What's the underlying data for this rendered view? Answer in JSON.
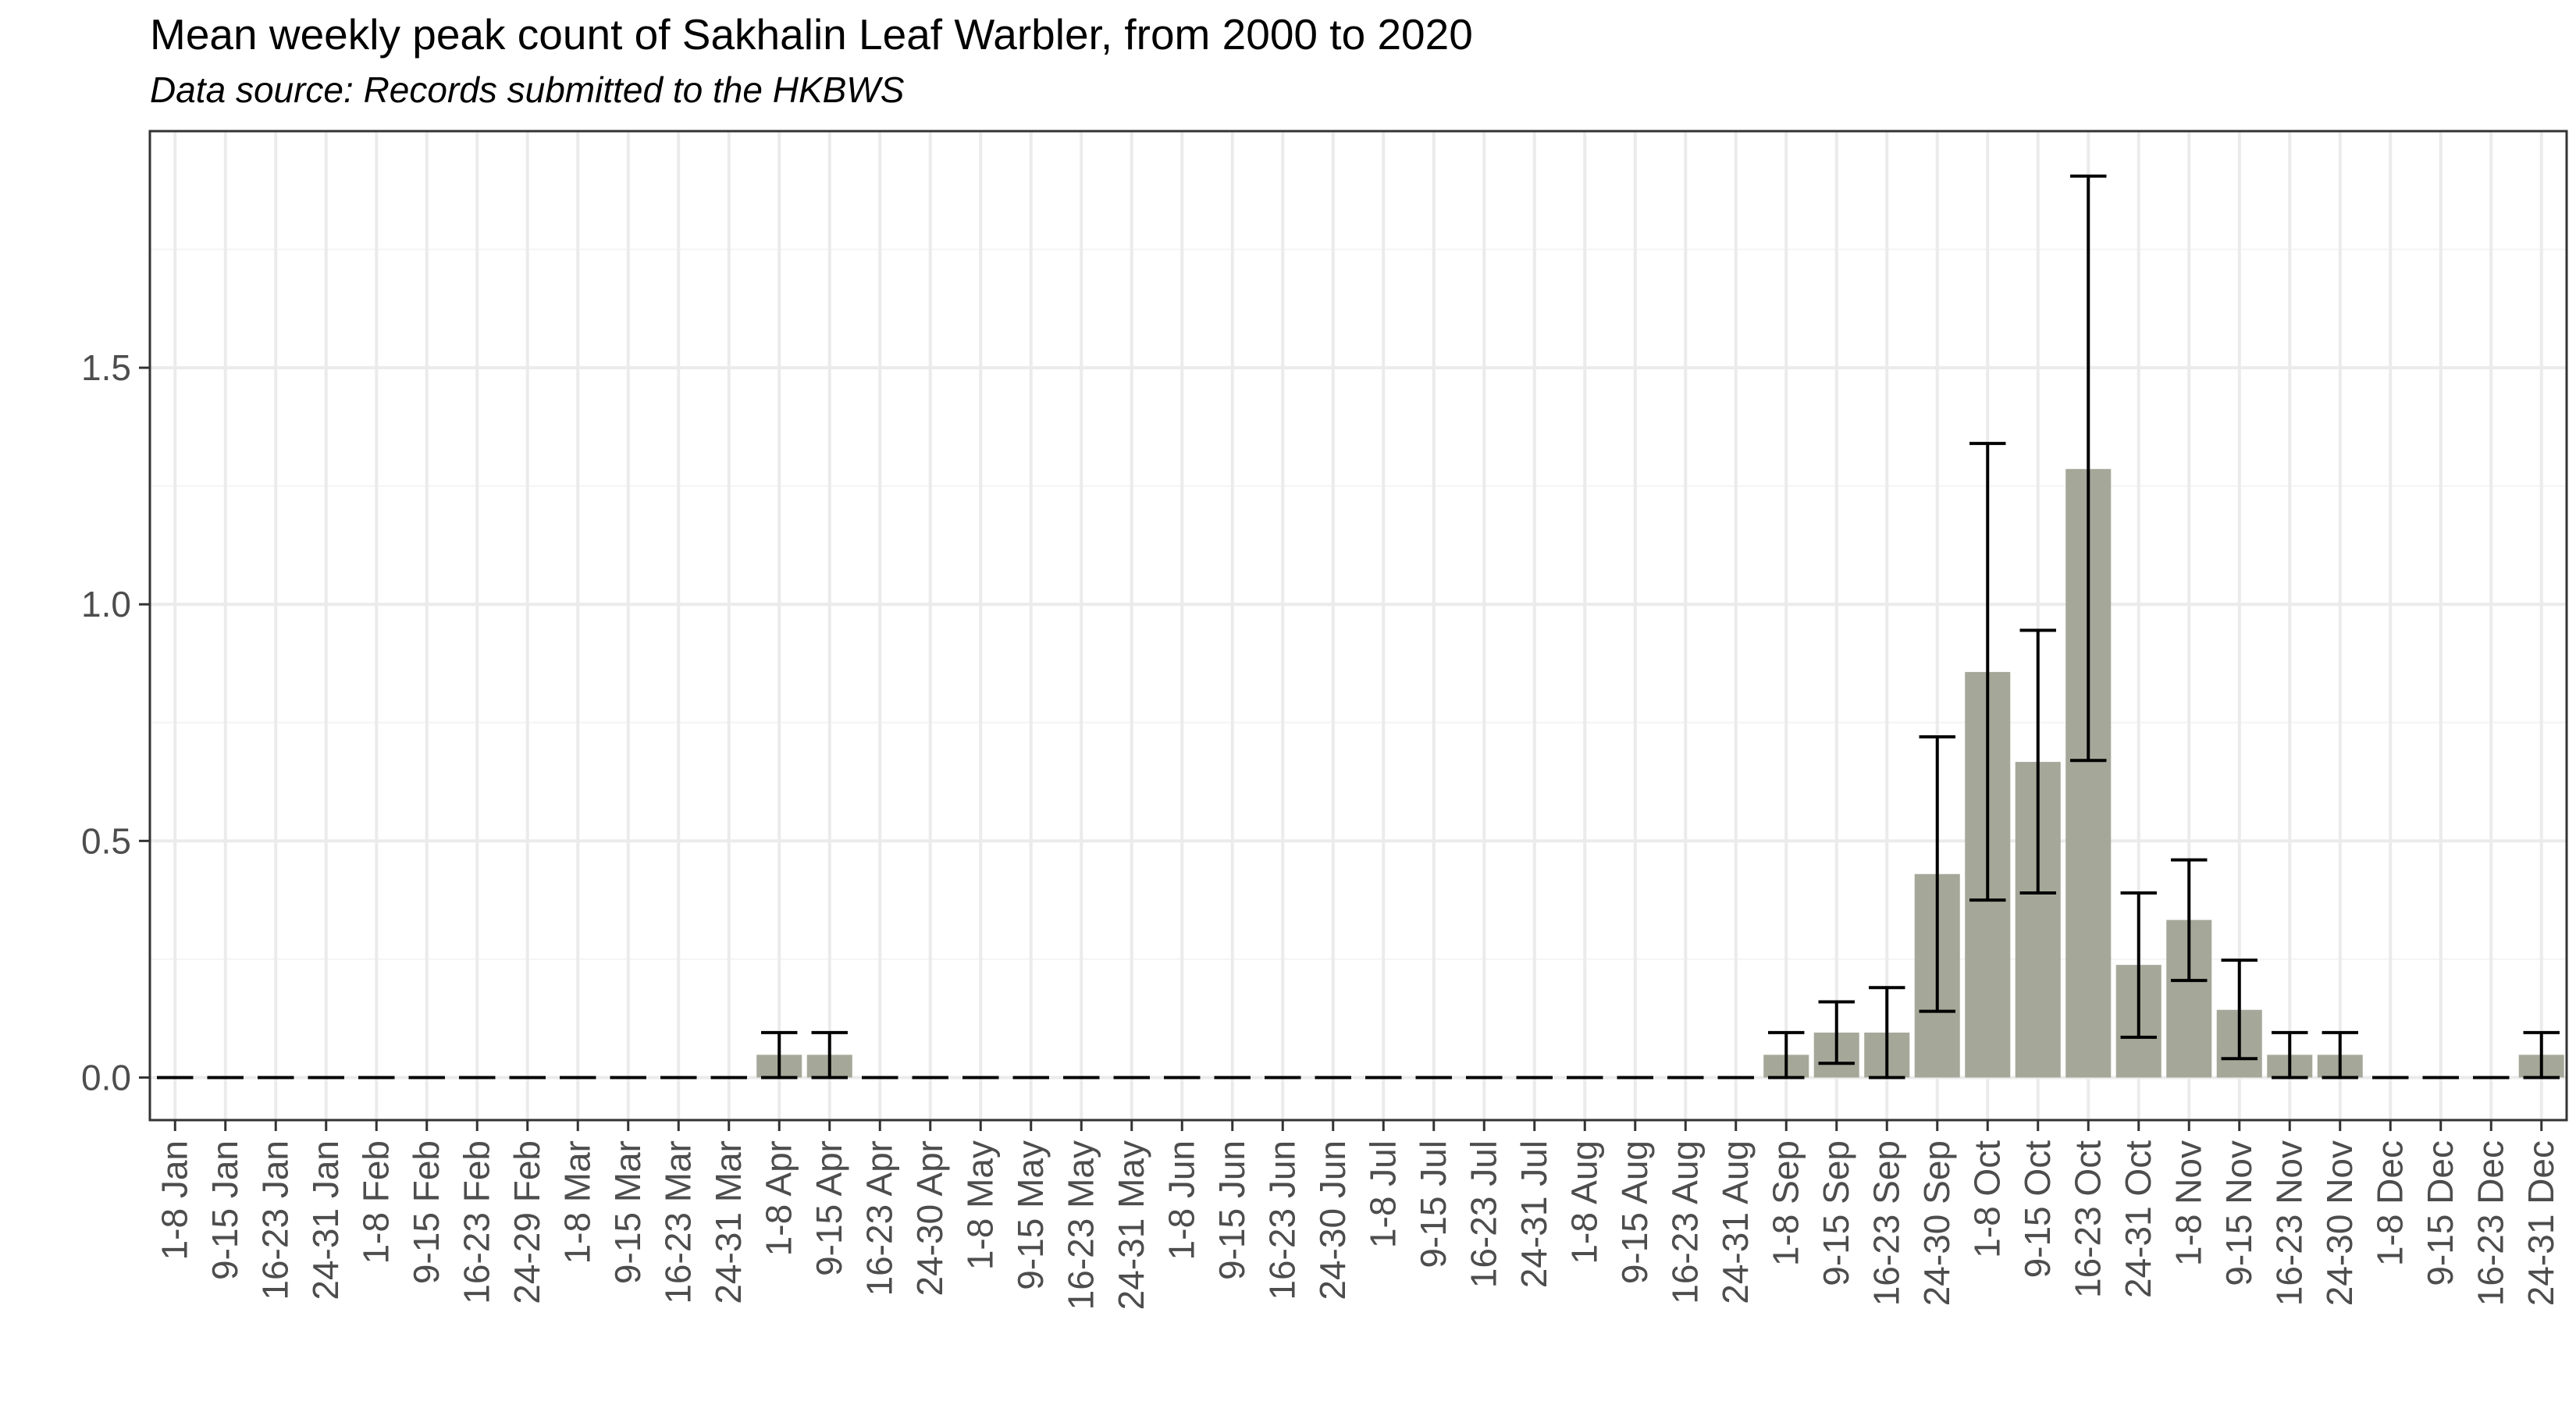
{
  "title": "Mean weekly peak count of Sakhalin Leaf Warbler, from 2000 to 2020",
  "subtitle": "Data source: Records submitted to the HKBWS",
  "colors": {
    "bar": "#a5a899",
    "error_bar": "#000000",
    "grid_major": "#ebebeb",
    "grid_minor": "#f4f4f4",
    "panel_border": "#333333",
    "tick_label": "#4d4d4d"
  },
  "chart_data": {
    "type": "bar",
    "title": "Mean weekly peak count of Sakhalin Leaf Warbler, from 2000 to 2020",
    "subtitle": "Data source: Records submitted to the HKBWS",
    "xlabel": "",
    "ylabel": "",
    "ylim": [
      -0.09,
      2.0
    ],
    "yticks": [
      0.0,
      0.5,
      1.0,
      1.5
    ],
    "ytick_labels": [
      "0.0",
      "0.5",
      "1.0",
      "1.5"
    ],
    "grid": true,
    "categories": [
      "1-8 Jan",
      "9-15 Jan",
      "16-23 Jan",
      "24-31 Jan",
      "1-8 Feb",
      "9-15 Feb",
      "16-23 Feb",
      "24-29 Feb",
      "1-8 Mar",
      "9-15 Mar",
      "16-23 Mar",
      "24-31 Mar",
      "1-8 Apr",
      "9-15 Apr",
      "16-23 Apr",
      "24-30 Apr",
      "1-8 May",
      "9-15 May",
      "16-23 May",
      "24-31 May",
      "1-8 Jun",
      "9-15 Jun",
      "16-23 Jun",
      "24-30 Jun",
      "1-8 Jul",
      "9-15 Jul",
      "16-23 Jul",
      "24-31 Jul",
      "1-8 Aug",
      "9-15 Aug",
      "16-23 Aug",
      "24-31 Aug",
      "1-8 Sep",
      "9-15 Sep",
      "16-23 Sep",
      "24-30 Sep",
      "1-8 Oct",
      "9-15 Oct",
      "16-23 Oct",
      "24-31 Oct",
      "1-8 Nov",
      "9-15 Nov",
      "16-23 Nov",
      "24-30 Nov",
      "1-8 Dec",
      "9-15 Dec",
      "16-23 Dec",
      "24-31 Dec"
    ],
    "values": [
      0,
      0,
      0,
      0,
      0,
      0,
      0,
      0,
      0,
      0,
      0,
      0,
      0.048,
      0.048,
      0,
      0,
      0,
      0,
      0,
      0,
      0,
      0,
      0,
      0,
      0,
      0,
      0,
      0,
      0,
      0,
      0,
      0,
      0.048,
      0.095,
      0.095,
      0.43,
      0.857,
      0.667,
      1.286,
      0.238,
      0.333,
      0.143,
      0.048,
      0.048,
      0,
      0,
      0,
      0.048
    ],
    "error_low": [
      0,
      0,
      0,
      0,
      0,
      0,
      0,
      0,
      0,
      0,
      0,
      0,
      0,
      0,
      0,
      0,
      0,
      0,
      0,
      0,
      0,
      0,
      0,
      0,
      0,
      0,
      0,
      0,
      0,
      0,
      0,
      0,
      0,
      0.03,
      0,
      0.14,
      0.375,
      0.39,
      0.67,
      0.085,
      0.205,
      0.04,
      0,
      0,
      0,
      0,
      0,
      0
    ],
    "error_high": [
      0,
      0,
      0,
      0,
      0,
      0,
      0,
      0,
      0,
      0,
      0,
      0,
      0.095,
      0.095,
      0,
      0,
      0,
      0,
      0,
      0,
      0,
      0,
      0,
      0,
      0,
      0,
      0,
      0,
      0,
      0,
      0,
      0,
      0.095,
      0.16,
      0.19,
      0.72,
      1.34,
      0.945,
      1.905,
      0.39,
      0.46,
      0.248,
      0.095,
      0.095,
      0,
      0,
      0,
      0.095
    ]
  }
}
